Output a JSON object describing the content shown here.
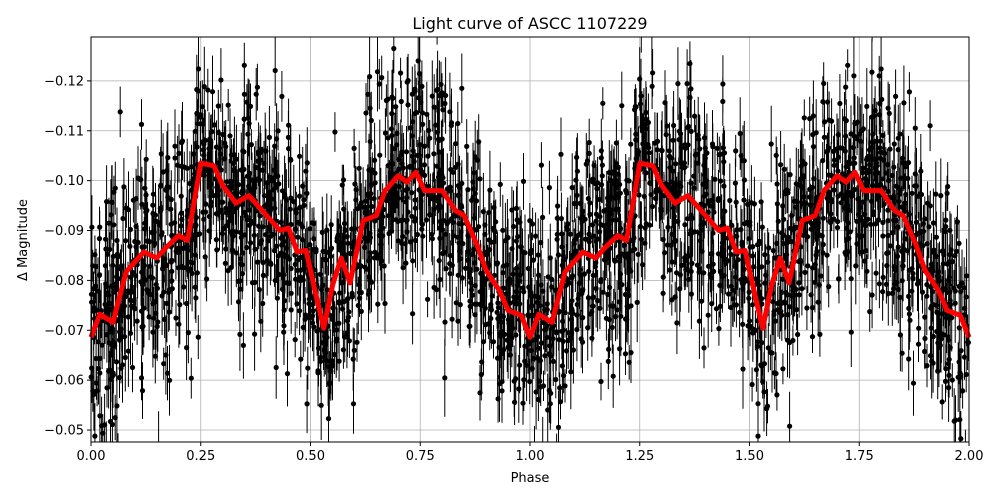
{
  "chart_data": {
    "type": "scatter",
    "title": "Light curve of ASCC 1107229",
    "xlabel": "Phase",
    "ylabel": "Δ Magnitude",
    "xlim": [
      0,
      2
    ],
    "ylim": [
      -0.0476,
      -0.1288
    ],
    "y_inverted": true,
    "grid": true,
    "xticks": [
      "0.00",
      "0.25",
      "0.50",
      "0.75",
      "1.00",
      "1.25",
      "1.50",
      "1.75",
      "2.00"
    ],
    "xtick_values": [
      0,
      0.25,
      0.5,
      0.75,
      1,
      1.25,
      1.5,
      1.75,
      2
    ],
    "yticks": [
      "−0.12",
      "−0.11",
      "−0.10",
      "−0.09",
      "−0.08",
      "−0.07",
      "−0.06",
      "−0.05"
    ],
    "ytick_values": [
      -0.12,
      -0.11,
      -0.1,
      -0.09,
      -0.08,
      -0.07,
      -0.06,
      -0.05
    ],
    "colors": {
      "points": "#000000",
      "model": "#ff0000",
      "grid": "#b0b0b0"
    },
    "series": [
      {
        "kind": "observations-with-errorbars",
        "color": "#000000"
      },
      {
        "kind": "smoothed-curve",
        "color": "#ff0000",
        "period": 1,
        "phase": [
          0,
          0.02,
          0.05,
          0.08,
          0.12,
          0.15,
          0.17,
          0.2,
          0.22,
          0.25,
          0.28,
          0.3,
          0.33,
          0.36,
          0.4,
          0.43,
          0.45,
          0.47,
          0.49,
          0.51,
          0.53,
          0.55,
          0.57,
          0.59,
          0.62,
          0.65,
          0.67,
          0.7,
          0.72,
          0.74,
          0.76,
          0.8,
          0.83,
          0.85,
          0.88,
          0.9,
          0.93,
          0.95,
          0.98,
          1.0
        ],
        "magnitude": [
          -0.0686,
          -0.0732,
          -0.0716,
          -0.0817,
          -0.0857,
          -0.0845,
          -0.0865,
          -0.089,
          -0.088,
          -0.1035,
          -0.103,
          -0.099,
          -0.0955,
          -0.097,
          -0.093,
          -0.09,
          -0.0905,
          -0.0857,
          -0.086,
          -0.078,
          -0.0704,
          -0.079,
          -0.0845,
          -0.0795,
          -0.092,
          -0.093,
          -0.098,
          -0.101,
          -0.0997,
          -0.1017,
          -0.098,
          -0.098,
          -0.094,
          -0.093,
          -0.087,
          -0.082,
          -0.078,
          -0.074,
          -0.073,
          -0.0686
        ]
      }
    ]
  }
}
